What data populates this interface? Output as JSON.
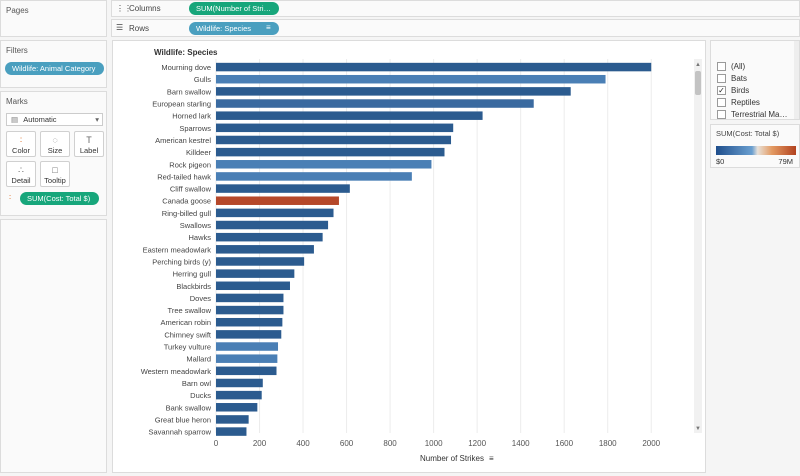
{
  "pages": {
    "title": "Pages"
  },
  "columns_shelf": {
    "label": "Columns",
    "pill": "SUM(Number of Strikes)"
  },
  "rows_shelf": {
    "label": "Rows",
    "pill": "Wildlife: Species"
  },
  "filters": {
    "title": "Filters",
    "pill": "Wildlife: Animal Category"
  },
  "marks": {
    "title": "Marks",
    "type_selected": "Automatic",
    "buttons": [
      "Color",
      "Size",
      "Label",
      "Detail",
      "Tooltip"
    ],
    "color_pill": "SUM(Cost: Total $)"
  },
  "category_filter": {
    "items": [
      {
        "label": "(All)",
        "checked": false
      },
      {
        "label": "Bats",
        "checked": false
      },
      {
        "label": "Birds",
        "checked": true
      },
      {
        "label": "Reptiles",
        "checked": false
      },
      {
        "label": "Terrestrial Mammal",
        "checked": false
      }
    ]
  },
  "color_legend": {
    "title": "SUM(Cost: Total $)",
    "min_label": "$0",
    "max_label": "79M"
  },
  "colors": {
    "bar_blue": "#2b5b8f",
    "bar_light": "#4a7fb5",
    "bar_orange": "#b5482a",
    "green_pill": "#17a67b",
    "teal_pill": "#4a9fbf"
  },
  "chart_data": {
    "type": "bar",
    "orientation": "horizontal",
    "row_header": "Wildlife: Species",
    "xlabel": "Number of Strikes",
    "xlim": [
      0,
      2100
    ],
    "xticks": [
      0,
      200,
      400,
      600,
      800,
      1000,
      1200,
      1400,
      1600,
      1800,
      2000
    ],
    "grid": true,
    "categories": [
      "Mourning dove",
      "Gulls",
      "Barn swallow",
      "European starling",
      "Horned lark",
      "Sparrows",
      "American kestrel",
      "Killdeer",
      "Rock pigeon",
      "Red-tailed hawk",
      "Cliff swallow",
      "Canada goose",
      "Ring-billed gull",
      "Swallows",
      "Hawks",
      "Eastern meadowlark",
      "Perching birds (y)",
      "Herring gull",
      "Blackbirds",
      "Doves",
      "Tree swallow",
      "American robin",
      "Chimney swift",
      "Turkey vulture",
      "Mallard",
      "Western meadowlark",
      "Barn owl",
      "Ducks",
      "Bank swallow",
      "Great blue heron",
      "Savannah sparrow"
    ],
    "values": [
      2000,
      1790,
      1630,
      1460,
      1225,
      1090,
      1080,
      1050,
      990,
      900,
      615,
      565,
      540,
      515,
      490,
      450,
      405,
      360,
      340,
      310,
      310,
      305,
      300,
      285,
      282,
      278,
      215,
      210,
      190,
      150,
      140
    ],
    "color_cost": [
      "dark",
      "light",
      "dark",
      "medium",
      "dark",
      "dark",
      "dark",
      "dark",
      "light",
      "light",
      "dark",
      "high",
      "dark",
      "dark",
      "dark",
      "dark",
      "dark",
      "dark",
      "dark",
      "dark",
      "dark",
      "dark",
      "dark",
      "light",
      "light",
      "dark",
      "dark",
      "dark",
      "dark",
      "dark",
      "dark"
    ]
  }
}
